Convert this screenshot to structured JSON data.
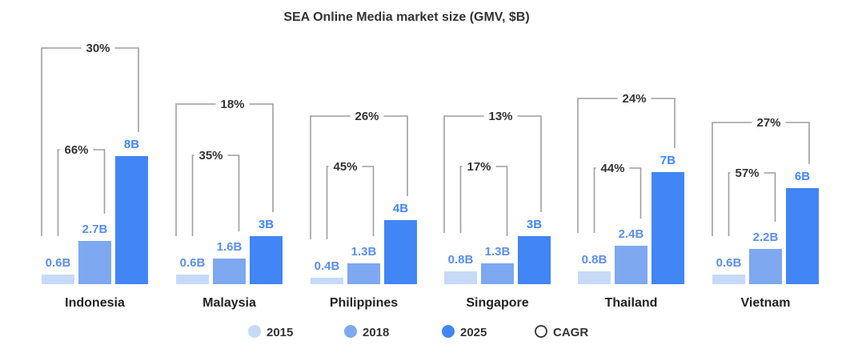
{
  "chart_data": {
    "type": "bar",
    "title": "SEA Online Media market size (GMV, $B)",
    "categories": [
      "Indonesia",
      "Malaysia",
      "Philippines",
      "Singapore",
      "Thailand",
      "Vietnam"
    ],
    "series": [
      {
        "name": "2015",
        "values": [
          0.6,
          0.6,
          0.4,
          0.8,
          0.8,
          0.6
        ],
        "labels": [
          "0.6B",
          "0.6B",
          "0.4B",
          "0.8B",
          "0.8B",
          "0.6B"
        ],
        "color": "#c6daf8"
      },
      {
        "name": "2018",
        "values": [
          2.7,
          1.6,
          1.3,
          1.3,
          2.4,
          2.2
        ],
        "labels": [
          "2.7B",
          "1.6B",
          "1.3B",
          "1.3B",
          "2.4B",
          "2.2B"
        ],
        "color": "#7ea8ef"
      },
      {
        "name": "2025",
        "values": [
          8,
          3,
          4,
          3,
          7,
          6
        ],
        "labels": [
          "8B",
          "3B",
          "4B",
          "3B",
          "7B",
          "6B"
        ],
        "color": "#4285f4"
      }
    ],
    "cagr_2015_2018": [
      "66%",
      "35%",
      "45%",
      "17%",
      "44%",
      "57%"
    ],
    "cagr_2015_2025": [
      "30%",
      "18%",
      "26%",
      "13%",
      "24%",
      "27%"
    ],
    "legend": [
      {
        "label": "2015",
        "color": "#c6daf8",
        "style": "filled"
      },
      {
        "label": "2018",
        "color": "#7ea8ef",
        "style": "filled"
      },
      {
        "label": "2025",
        "color": "#4285f4",
        "style": "filled"
      },
      {
        "label": "CAGR",
        "color": "#333333",
        "style": "outline"
      }
    ],
    "legend_position": "bottom-center",
    "label_colors": {
      "2015": "#5b8fe8",
      "2018": "#5b8fe8",
      "2025": "#4285f4"
    },
    "grid": false
  }
}
